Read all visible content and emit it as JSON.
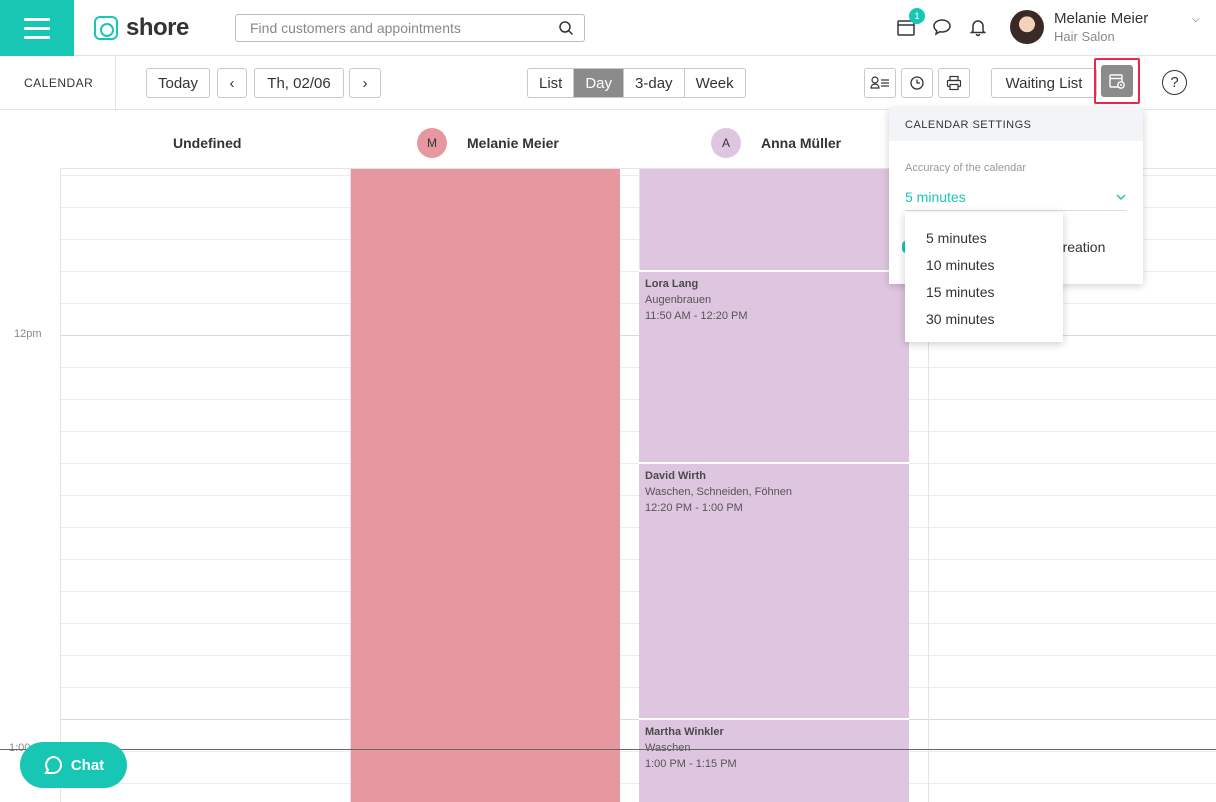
{
  "header": {
    "logo_text": "shore",
    "search_placeholder": "Find customers and appointments",
    "notification_count": "1",
    "user_name": "Melanie Meier",
    "user_role": "Hair Salon"
  },
  "toolbar": {
    "section_label": "CALENDAR",
    "today": "Today",
    "prev": "‹",
    "date": "Th, 02/06",
    "next": "›",
    "views": [
      "List",
      "Day",
      "3-day",
      "Week"
    ],
    "active_view": "Day",
    "waiting_list": "Waiting List",
    "help": "?"
  },
  "columns": [
    {
      "name": "Undefined",
      "initial": ""
    },
    {
      "name": "Melanie Meier",
      "initial": "M",
      "color": "#e6979f"
    },
    {
      "name": "Anna Müller",
      "initial": "A",
      "color": "#dfc6e0"
    }
  ],
  "time_labels": {
    "noon": "12pm",
    "one": "1:00"
  },
  "appointments": [
    {
      "customer": "Lora Lang",
      "service": "Augenbrauen",
      "time": "11:50 AM - 12:20 PM"
    },
    {
      "customer": "David Wirth",
      "service": "Waschen, Schneiden, Föhnen",
      "time": "12:20 PM - 1:00 PM"
    },
    {
      "customer": "Martha Winkler",
      "service": "Waschen",
      "time": "1:00 PM - 1:15 PM"
    }
  ],
  "settings_panel": {
    "title": "CALENDAR SETTINGS",
    "accuracy_label": "Accuracy of the calendar",
    "accuracy_value": "5 minutes",
    "behind_text": "nt creation",
    "options": [
      "5 minutes",
      "10 minutes",
      "15 minutes",
      "30 minutes"
    ]
  },
  "chat": {
    "label": "Chat"
  },
  "colors": {
    "accent": "#18c7b3",
    "melanie_block": "#e6979f",
    "anna_block": "#dfc6e0",
    "highlight": "#e8274b"
  }
}
